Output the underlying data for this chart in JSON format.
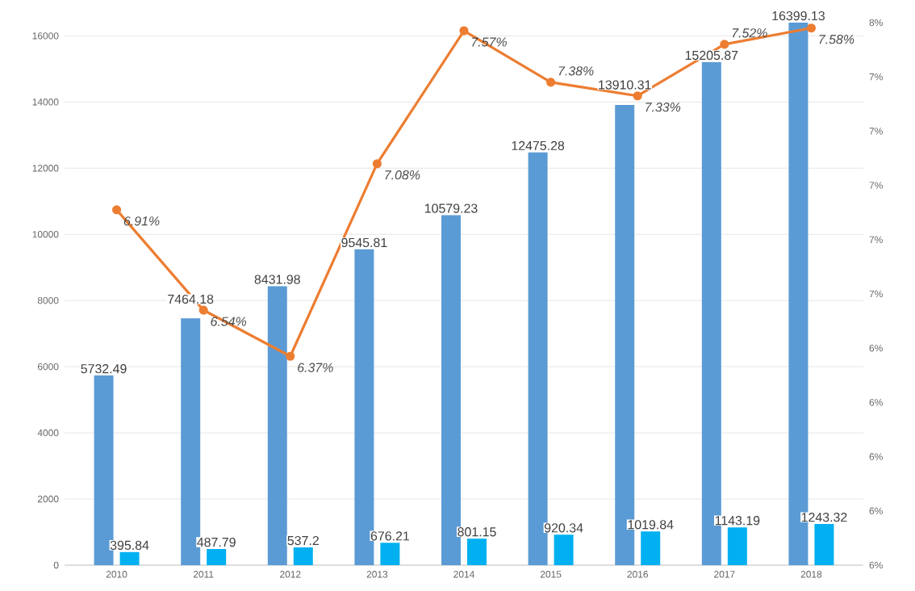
{
  "chart_data": {
    "type": "bar",
    "categories": [
      "2010",
      "2011",
      "2012",
      "2013",
      "2014",
      "2015",
      "2016",
      "2017",
      "2018"
    ],
    "series": [
      {
        "color": "#5b9bd5",
        "values": [
          5732.49,
          7464.18,
          8431.98,
          9545.81,
          10579.23,
          12475.28,
          13910.31,
          15205.87,
          16399.13
        ],
        "value_labels": [
          "5732.49",
          "7464.18",
          "8431.98",
          "9545.81",
          "10579.23",
          "12475.28",
          "13910.31",
          "15205.87",
          "16399.13"
        ]
      },
      {
        "color": "#00b0f0",
        "values": [
          395.84,
          487.79,
          537.2,
          676.21,
          801.15,
          920.34,
          1019.84,
          1143.19,
          1243.32
        ],
        "value_labels": [
          "395.84",
          "487.79",
          "537.2",
          "676.21",
          "801.15",
          "920.34",
          "1019.84",
          "1143.19",
          "1243.32"
        ]
      },
      {
        "type": "line",
        "axis": "y2",
        "color": "#ed7d31",
        "marker": "circle",
        "values": [
          6.91,
          6.54,
          6.37,
          7.08,
          7.57,
          7.38,
          7.33,
          7.52,
          7.58
        ],
        "value_labels": [
          "6.91%",
          "6.54%",
          "6.37%",
          "7.08%",
          "7.57%",
          "7.38%",
          "7.33%",
          "7.52%",
          "7.58%"
        ]
      }
    ],
    "ylim": [
      0,
      16400
    ],
    "yticks": [
      0,
      2000,
      4000,
      6000,
      8000,
      10000,
      12000,
      14000,
      16000
    ],
    "y2lim": [
      5.6,
      7.6
    ],
    "y2ticks": [
      {
        "value": 5.6,
        "label": "6%"
      },
      {
        "value": 5.8,
        "label": "6%"
      },
      {
        "value": 6.0,
        "label": "6%"
      },
      {
        "value": 6.2,
        "label": "6%"
      },
      {
        "value": 6.4,
        "label": "6%"
      },
      {
        "value": 6.6,
        "label": "7%"
      },
      {
        "value": 6.8,
        "label": "7%"
      },
      {
        "value": 7.0,
        "label": "7%"
      },
      {
        "value": 7.2,
        "label": "7%"
      },
      {
        "value": 7.4,
        "label": "7%"
      },
      {
        "value": 7.6,
        "label": "8%"
      }
    ],
    "grid": "y"
  }
}
